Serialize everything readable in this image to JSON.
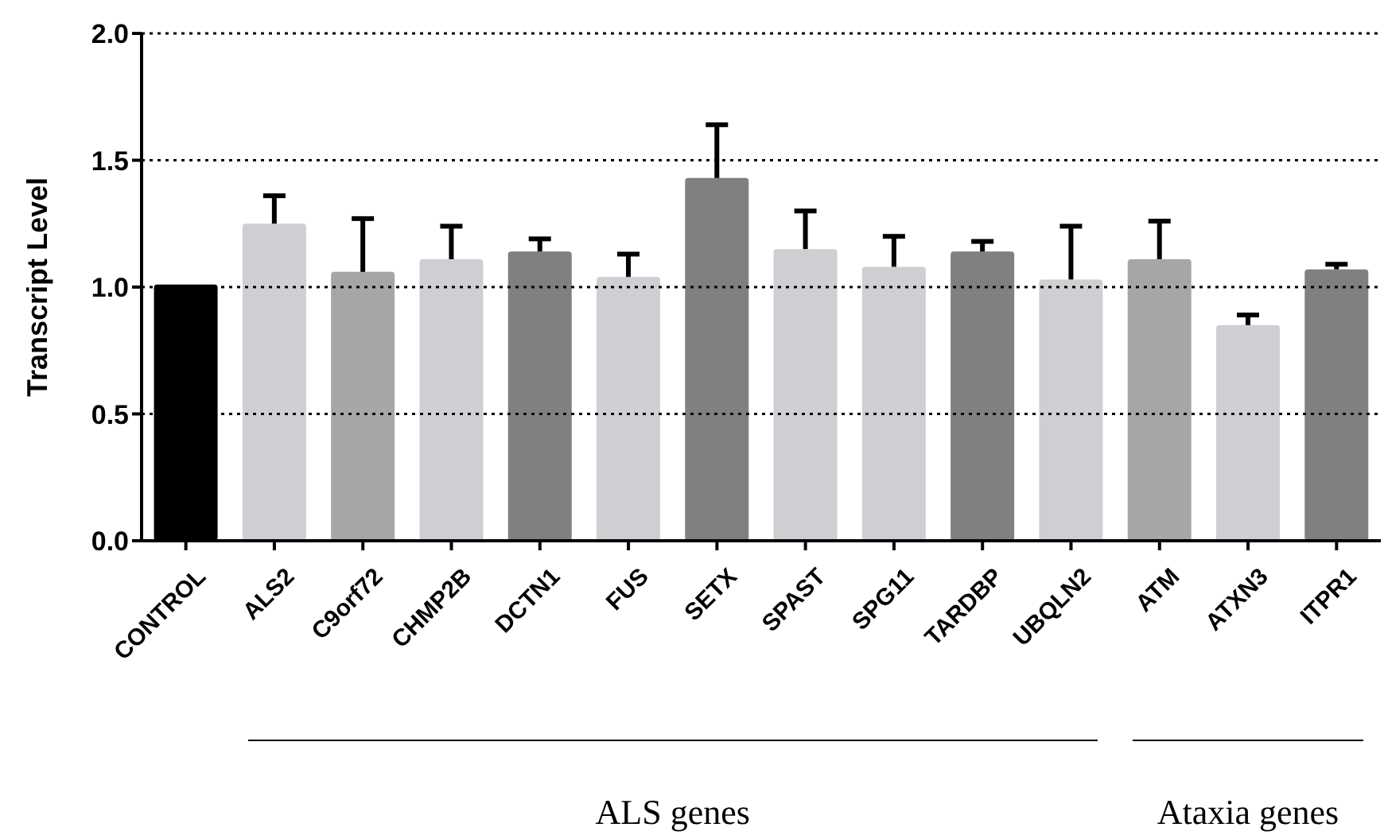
{
  "chart_data": {
    "type": "bar",
    "ylabel": "Transcript Level",
    "categories": [
      "CONTROL",
      "ALS2",
      "C9orf72",
      "CHMP2B",
      "DCTN1",
      "FUS",
      "SETX",
      "SPAST",
      "SPG11",
      "TARDBP",
      "UBQLN2",
      "ATM",
      "ATXN3",
      "ITPR1"
    ],
    "values": [
      1.01,
      1.25,
      1.06,
      1.11,
      1.14,
      1.04,
      1.43,
      1.15,
      1.08,
      1.14,
      1.03,
      1.11,
      0.85,
      1.07
    ],
    "errors": [
      null,
      [
        1.25,
        1.36
      ],
      [
        1.06,
        1.27
      ],
      [
        1.11,
        1.24
      ],
      [
        1.14,
        1.19
      ],
      [
        1.04,
        1.13
      ],
      [
        1.43,
        1.64
      ],
      [
        1.15,
        1.3
      ],
      [
        1.08,
        1.2
      ],
      [
        1.14,
        1.18
      ],
      [
        1.03,
        1.24
      ],
      [
        1.11,
        1.26
      ],
      [
        0.85,
        0.89
      ],
      [
        1.07,
        1.09
      ]
    ],
    "colors": [
      "#000000",
      "#cfcfd3",
      "#a6a6a6",
      "#cfcfd3",
      "#808080",
      "#cfcfd3",
      "#808080",
      "#cfcfd3",
      "#cfcfd3",
      "#808080",
      "#cfcfd3",
      "#a6a6a6",
      "#cfcfd3",
      "#808080"
    ],
    "ylim": [
      0,
      2.0
    ],
    "yticks": [
      {
        "value": 0,
        "label": "0.0"
      },
      {
        "value": 0.5,
        "label": "0.5"
      },
      {
        "value": 1,
        "label": "1.0"
      },
      {
        "value": 1.5,
        "label": "1.5"
      },
      {
        "value": 2,
        "label": "2.0"
      }
    ],
    "grid": "y",
    "annotations": [
      "ALS genes",
      "Ataxia genes"
    ]
  }
}
